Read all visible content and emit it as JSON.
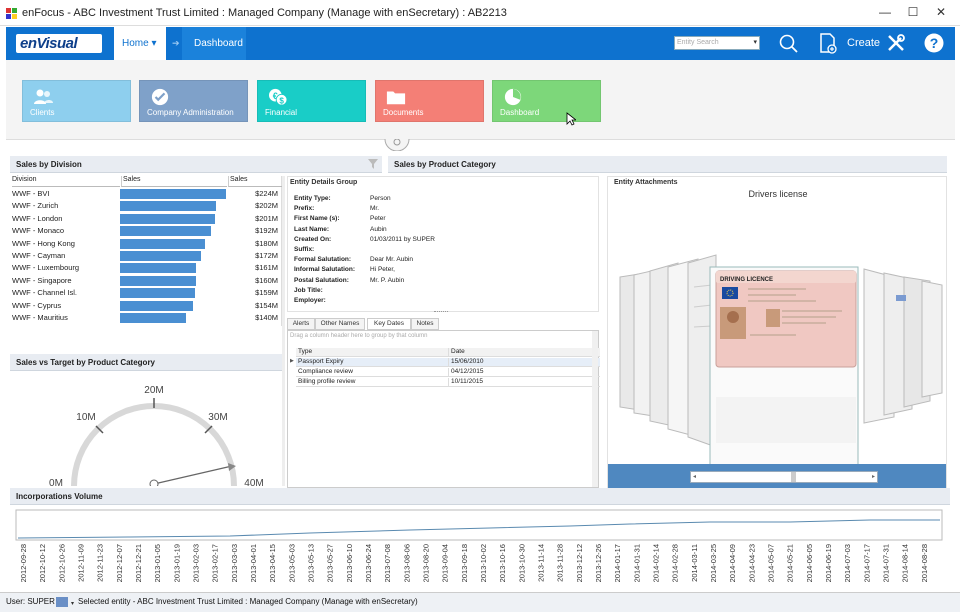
{
  "window": {
    "title": "enFocus - ABC Investment Trust Limited : Managed Company (Manage with enSecretary) : AB2213",
    "minimize": "—",
    "maximize": "☐",
    "close": "✕"
  },
  "topbar": {
    "logo": "enVisual",
    "home_label": "Home ▾",
    "breadcrumb_sep": "➔",
    "breadcrumb": "Dashboard",
    "entity_search_placeholder": "Entity Search",
    "create_label": "Create",
    "accent_color": "#0e72cf"
  },
  "tiles": [
    {
      "label": "Clients",
      "color": "#8ecfee",
      "icon": "people-icon"
    },
    {
      "label": "Company Administration",
      "color": "#7fa1c9",
      "icon": "check-badge-icon"
    },
    {
      "label": "Financial",
      "color": "#19cdc7",
      "icon": "currency-icon"
    },
    {
      "label": "Documents",
      "color": "#f47f76",
      "icon": "folder-icon"
    },
    {
      "label": "Dashboard",
      "color": "#7dd77a",
      "icon": "pie-chart-icon"
    }
  ],
  "sales_by_division": {
    "title": "Sales by Division",
    "columns": [
      "Division",
      "Sales",
      "Sales"
    ],
    "rows": [
      {
        "division": "WWF - BVI",
        "value": 224,
        "label": "$224M"
      },
      {
        "division": "WWF - Zurich",
        "value": 202,
        "label": "$202M"
      },
      {
        "division": "WWF - London",
        "value": 201,
        "label": "$201M"
      },
      {
        "division": "WWF - Monaco",
        "value": 192,
        "label": "$192M"
      },
      {
        "division": "WWF - Hong Kong",
        "value": 180,
        "label": "$180M"
      },
      {
        "division": "WWF - Cayman",
        "value": 172,
        "label": "$172M"
      },
      {
        "division": "WWF - Luxembourg",
        "value": 161,
        "label": "$161M"
      },
      {
        "division": "WWF - Singapore",
        "value": 160,
        "label": "$160M"
      },
      {
        "division": "WWF - Channel Isl.",
        "value": 159,
        "label": "$159M"
      },
      {
        "division": "WWF - Cyprus",
        "value": 154,
        "label": "$154M"
      },
      {
        "division": "WWF - Mauritius",
        "value": 140,
        "label": "$140M"
      }
    ]
  },
  "sales_by_product": {
    "title": "Sales by Product Category"
  },
  "entity_details": {
    "title": "Entity Details Group",
    "fields": [
      {
        "key": "Entity Type:",
        "value": "Person"
      },
      {
        "key": "Prefix:",
        "value": "Mr."
      },
      {
        "key": "First Name (s):",
        "value": "Peter"
      },
      {
        "key": "Last Name:",
        "value": "Aubin"
      },
      {
        "key": "Created On:",
        "value": "01/03/2011 by SUPER"
      },
      {
        "key": "Suffix:",
        "value": ""
      },
      {
        "key": "Formal Salutation:",
        "value": "Dear Mr. Aubin"
      },
      {
        "key": "Informal Salutation:",
        "value": "Hi Peter,"
      },
      {
        "key": "Postal Salutation:",
        "value": "Mr. P. Aubin"
      },
      {
        "key": "Job Title:",
        "value": ""
      },
      {
        "key": "Employer:",
        "value": ""
      }
    ]
  },
  "detail_tabs": [
    "Alerts",
    "Other Names",
    "Key Dates",
    "Notes"
  ],
  "key_dates": {
    "group_hint": "Drag a column header here to group by that column",
    "columns": [
      "Type",
      "Date"
    ],
    "rows": [
      {
        "type": "Passport Expiry",
        "date": "15/06/2010"
      },
      {
        "type": "Compliance review",
        "date": "04/12/2015"
      },
      {
        "type": "Billing profile review",
        "date": "10/11/2015"
      }
    ]
  },
  "attachments": {
    "title": "Entity Attachments",
    "caption": "Drivers license",
    "doc_heading": "DRIVING LICENCE"
  },
  "gauge": {
    "title": "Sales vs Target by Product Category",
    "ticks": [
      "0M",
      "10M",
      "20M",
      "30M",
      "40M"
    ]
  },
  "incorporations": {
    "title": "Incorporations Volume",
    "dates": [
      "2012-09-28",
      "2012-10-12",
      "2012-10-26",
      "2012-11-09",
      "2012-11-23",
      "2012-12-07",
      "2012-12-21",
      "2013-01-05",
      "2013-01-19",
      "2013-02-03",
      "2013-02-17",
      "2013-03-03",
      "2013-04-01",
      "2013-04-15",
      "2013-05-03",
      "2013-05-13",
      "2013-05-27",
      "2013-06-10",
      "2013-06-24",
      "2013-07-08",
      "2013-08-06",
      "2013-08-20",
      "2013-09-04",
      "2013-09-18",
      "2013-10-02",
      "2013-10-16",
      "2013-10-30",
      "2013-11-14",
      "2013-11-28",
      "2013-12-12",
      "2013-12-26",
      "2014-01-17",
      "2014-01-31",
      "2014-02-14",
      "2014-02-28",
      "2014-03-11",
      "2014-03-25",
      "2014-04-09",
      "2014-04-23",
      "2014-05-07",
      "2014-05-21",
      "2014-06-05",
      "2014-06-19",
      "2014-07-03",
      "2014-07-17",
      "2014-07-31",
      "2014-08-14",
      "2014-08-28"
    ]
  },
  "status": {
    "user": "User: SUPER",
    "selected": "Selected entity - ABC Investment Trust Limited : Managed Company (Manage with enSecretary)"
  }
}
